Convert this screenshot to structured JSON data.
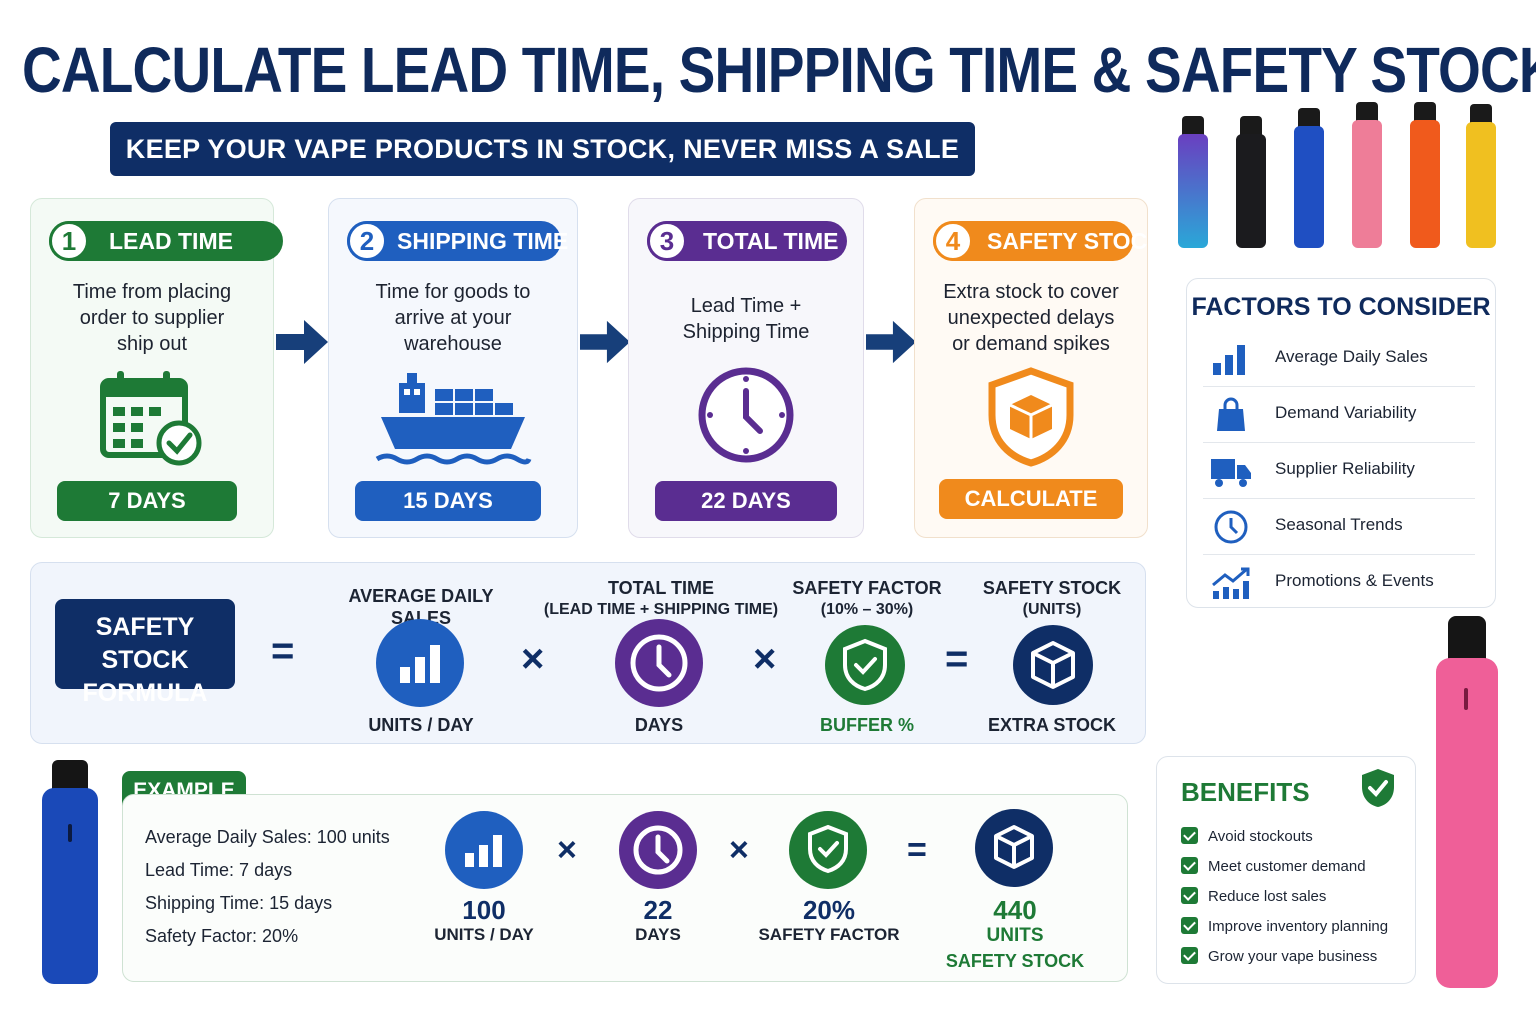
{
  "title": "CALCULATE LEAD TIME, SHIPPING TIME & SAFETY STOCK",
  "subtitle": "KEEP YOUR VAPE PRODUCTS IN STOCK, NEVER MISS A SALE",
  "colors": {
    "navy": "#0f2e66",
    "green": "#1e7a36",
    "blue": "#1f5fbf",
    "purple": "#5a2d91",
    "orange": "#f08a1c"
  },
  "steps": [
    {
      "number": "1",
      "label": "LEAD TIME",
      "desc": [
        "Time from placing",
        "order to supplier",
        "ship out"
      ],
      "value": "7 DAYS",
      "icon": "calendar-check-icon"
    },
    {
      "number": "2",
      "label": "SHIPPING TIME",
      "desc": [
        "Time for goods to",
        "arrive at your",
        "warehouse"
      ],
      "value": "15 DAYS",
      "icon": "cargo-ship-icon"
    },
    {
      "number": "3",
      "label": "TOTAL TIME",
      "desc": [
        "Lead Time +",
        "Shipping Time"
      ],
      "value": "22 DAYS",
      "icon": "clock-icon"
    },
    {
      "number": "4",
      "label": "SAFETY STOCK",
      "desc": [
        "Extra stock to cover",
        "unexpected delays",
        "or demand spikes"
      ],
      "value": "CALCULATE",
      "icon": "shield-box-icon"
    }
  ],
  "factors": {
    "title": "FACTORS TO CONSIDER",
    "items": [
      {
        "label": "Average Daily Sales",
        "icon": "bar-chart-icon"
      },
      {
        "label": "Demand Variability",
        "icon": "shopping-bag-icon"
      },
      {
        "label": "Supplier Reliability",
        "icon": "truck-icon"
      },
      {
        "label": "Seasonal Trends",
        "icon": "clock-icon"
      },
      {
        "label": "Promotions & Events",
        "icon": "trend-chart-icon"
      }
    ]
  },
  "formula": {
    "box": [
      "SAFETY STOCK",
      "FORMULA"
    ],
    "equals": "=",
    "times": "×",
    "terms": [
      {
        "head": [
          "AVERAGE DAILY SALES"
        ],
        "sub": "UNITS / DAY",
        "icon": "bar-chart-icon"
      },
      {
        "head": [
          "TOTAL TIME",
          "(LEAD TIME + SHIPPING TIME)"
        ],
        "sub": "DAYS",
        "icon": "clock-icon"
      },
      {
        "head": [
          "SAFETY FACTOR",
          "(10% – 30%)"
        ],
        "sub": "BUFFER %",
        "icon": "shield-check-icon"
      },
      {
        "head": [
          "SAFETY STOCK",
          "(UNITS)"
        ],
        "sub": "EXTRA STOCK",
        "icon": "box-icon"
      }
    ]
  },
  "example": {
    "tag": "EXAMPLE",
    "lines": [
      "Average Daily Sales: 100 units",
      "Lead Time: 7 days",
      "Shipping Time: 15 days",
      "Safety Factor: 20%"
    ],
    "terms": [
      {
        "value": "100",
        "sub": [
          "UNITS / DAY"
        ]
      },
      {
        "value": "22",
        "sub": [
          "DAYS"
        ]
      },
      {
        "value": "20%",
        "sub": [
          "SAFETY FACTOR"
        ]
      },
      {
        "value": "440",
        "sub": [
          "UNITS",
          "SAFETY STOCK"
        ]
      }
    ]
  },
  "benefits": {
    "title": "BENEFITS",
    "items": [
      "Avoid stockouts",
      "Meet customer demand",
      "Reduce lost sales",
      "Improve inventory planning",
      "Grow your vape business"
    ]
  }
}
